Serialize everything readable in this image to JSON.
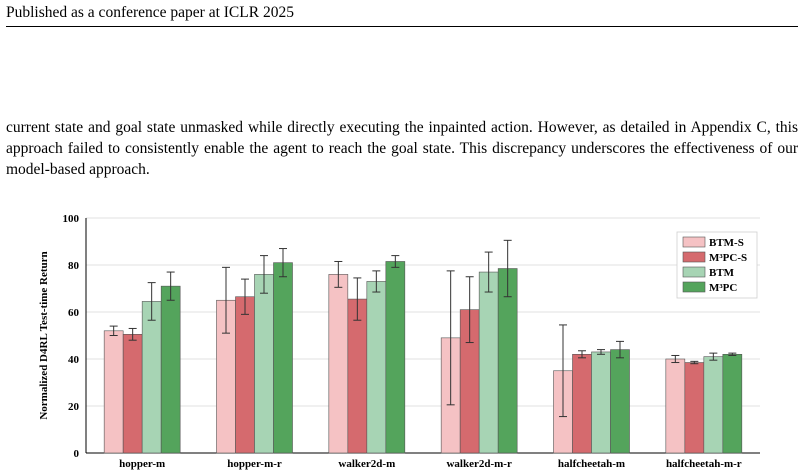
{
  "header": {
    "running_title": "Published as a conference paper at ICLR 2025"
  },
  "body": {
    "paragraph": "current state and goal state unmasked while directly executing the inpainted action. However, as detailed in Appendix C, this approach failed to consistently enable the agent to reach the goal state. This discrepancy underscores the effectiveness of our model-based approach."
  },
  "colors": {
    "BTM-S": "#f5c2c4",
    "M³PC-S": "#d56a6e",
    "BTM": "#a7d4b4",
    "M³PC": "#54a45c"
  },
  "chart_data": {
    "type": "bar",
    "title": "",
    "xlabel": "",
    "ylabel": "Normalized D4RL Test-time Return",
    "ylim": [
      0,
      100
    ],
    "yticks": [
      0,
      20,
      40,
      60,
      80,
      100
    ],
    "grid": true,
    "legend_position": "top-right",
    "categories": [
      "hopper-m",
      "hopper-m-r",
      "walker2d-m",
      "walker2d-m-r",
      "halfcheetah-m",
      "halfcheetah-m-r"
    ],
    "series": [
      {
        "name": "BTM-S",
        "values": [
          52,
          65,
          76,
          49,
          35,
          40
        ],
        "errors": [
          2,
          14,
          5.5,
          28.5,
          19.5,
          1.5
        ]
      },
      {
        "name": "M³PC-S",
        "values": [
          50.5,
          66.5,
          65.5,
          61,
          42,
          38.5
        ],
        "errors": [
          2.5,
          7.5,
          9,
          14,
          1.5,
          0.5
        ]
      },
      {
        "name": "BTM",
        "values": [
          64.5,
          76,
          73,
          77,
          43,
          41
        ],
        "errors": [
          8,
          8,
          4.5,
          8.5,
          1,
          1.5
        ]
      },
      {
        "name": "M³PC",
        "values": [
          71,
          81,
          81.5,
          78.5,
          44,
          42
        ],
        "errors": [
          6,
          6,
          2.5,
          12,
          3.5,
          0.5
        ]
      }
    ]
  }
}
